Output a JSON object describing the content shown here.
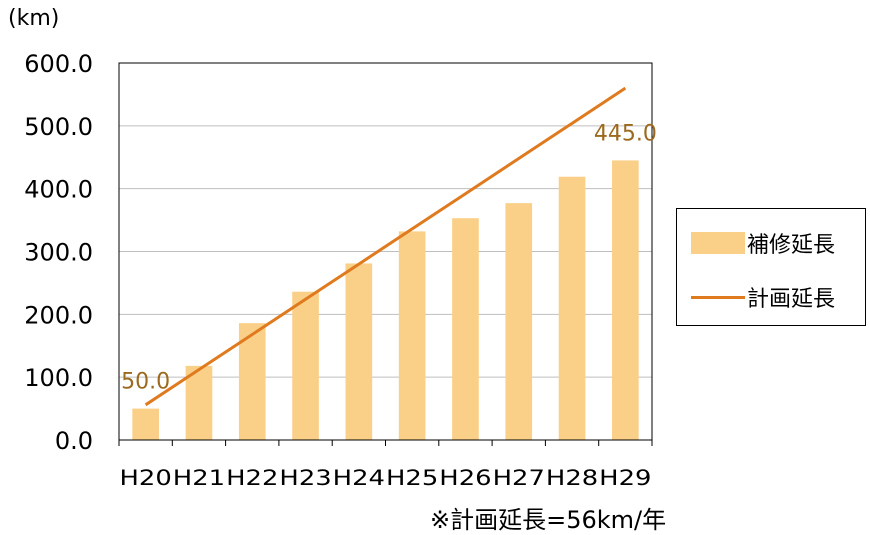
{
  "chart_data": {
    "type": "bar",
    "unit_label": "(km)",
    "categories": [
      "H20",
      "H21",
      "H22",
      "H23",
      "H24",
      "H25",
      "H26",
      "H27",
      "H28",
      "H29"
    ],
    "series": [
      {
        "name": "補修延長",
        "kind": "bar",
        "color": "#FAD089",
        "values": [
          50.0,
          118,
          186,
          236,
          281,
          332,
          353,
          377,
          419,
          445.0
        ]
      },
      {
        "name": "計画延長",
        "kind": "line",
        "color": "#E07A1F",
        "values": [
          56,
          112,
          168,
          224,
          280,
          336,
          392,
          448,
          504,
          560
        ]
      }
    ],
    "ylim": [
      0,
      600
    ],
    "yticks": [
      "0.0",
      "100.0",
      "200.0",
      "300.0",
      "400.0",
      "500.0",
      "600.0"
    ],
    "data_labels": [
      {
        "index": 0,
        "text": "50.0"
      },
      {
        "index": 9,
        "text": "445.0"
      }
    ],
    "data_label_color": "#9C6A1E",
    "grid": true,
    "legend_position": "right",
    "note": "※計画延長=56km/年"
  }
}
